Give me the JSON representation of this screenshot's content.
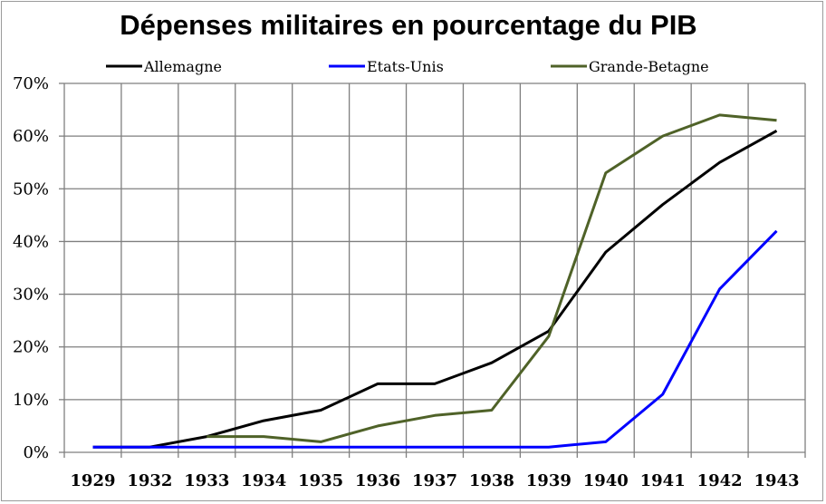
{
  "chart_data": {
    "type": "line",
    "title": "Dépenses militaires en pourcentage du PIB",
    "xlabel": "",
    "ylabel": "",
    "categories": [
      "1929",
      "1932",
      "1933",
      "1934",
      "1935",
      "1936",
      "1937",
      "1938",
      "1939",
      "1940",
      "1941",
      "1942",
      "1943"
    ],
    "y_ticks": [
      "0%",
      "10%",
      "20%",
      "30%",
      "40%",
      "50%",
      "60%",
      "70%"
    ],
    "ylim": [
      0,
      70
    ],
    "grid": true,
    "legend_position": "top",
    "series": [
      {
        "name": "Allemagne",
        "color": "#000000",
        "points": [
          {
            "x": 0.0,
            "y": 1
          },
          {
            "x": 1.0,
            "y": 1
          },
          {
            "x": 2.0,
            "y": 3
          },
          {
            "x": 3.0,
            "y": 6
          },
          {
            "x": 4.0,
            "y": 8
          },
          {
            "x": 5.0,
            "y": 13
          },
          {
            "x": 6.0,
            "y": 13
          },
          {
            "x": 7.0,
            "y": 17
          },
          {
            "x": 8.0,
            "y": 23
          },
          {
            "x": 9.0,
            "y": 38
          },
          {
            "x": 10.0,
            "y": 47
          },
          {
            "x": 11.0,
            "y": 55
          },
          {
            "x": 12.0,
            "y": 61
          }
        ]
      },
      {
        "name": "Etats-Unis",
        "color": "#0000ff",
        "points": [
          {
            "x": 0.0,
            "y": 1
          },
          {
            "x": 1.0,
            "y": 1
          },
          {
            "x": 2.0,
            "y": 1
          },
          {
            "x": 3.0,
            "y": 1
          },
          {
            "x": 4.0,
            "y": 1
          },
          {
            "x": 5.0,
            "y": 1
          },
          {
            "x": 6.0,
            "y": 1
          },
          {
            "x": 7.0,
            "y": 1
          },
          {
            "x": 8.0,
            "y": 1
          },
          {
            "x": 9.0,
            "y": 2
          },
          {
            "x": 10.0,
            "y": 11
          },
          {
            "x": 11.0,
            "y": 31
          },
          {
            "x": 12.0,
            "y": 42
          }
        ]
      },
      {
        "name": "Grande-Betagne",
        "color": "#4f6228",
        "points": [
          {
            "x": 2.0,
            "y": 3
          },
          {
            "x": 3.0,
            "y": 3
          },
          {
            "x": 4.0,
            "y": 2
          },
          {
            "x": 5.0,
            "y": 5
          },
          {
            "x": 6.0,
            "y": 7
          },
          {
            "x": 7.0,
            "y": 8
          },
          {
            "x": 8.0,
            "y": 22
          },
          {
            "x": 9.0,
            "y": 53
          },
          {
            "x": 10.0,
            "y": 60
          },
          {
            "x": 11.0,
            "y": 64
          },
          {
            "x": 12.0,
            "y": 63
          }
        ]
      }
    ]
  }
}
